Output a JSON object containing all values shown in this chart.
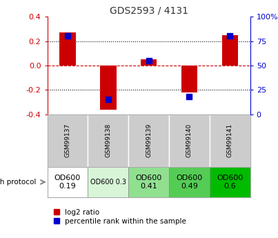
{
  "title": "GDS2593 / 4131",
  "samples": [
    "GSM99137",
    "GSM99138",
    "GSM99139",
    "GSM99140",
    "GSM99141"
  ],
  "log2_ratio": [
    0.27,
    -0.36,
    0.05,
    -0.22,
    0.25
  ],
  "percentile_rank": [
    80,
    15,
    55,
    18,
    80
  ],
  "ylim_left": [
    -0.4,
    0.4
  ],
  "ylim_right": [
    0,
    100
  ],
  "yticks_left": [
    -0.4,
    -0.2,
    0.0,
    0.2,
    0.4
  ],
  "yticks_right": [
    0,
    25,
    50,
    75,
    100
  ],
  "bar_color_red": "#cc0000",
  "dot_color_blue": "#0000cc",
  "growth_protocol_labels": [
    "OD600\n0.19",
    "OD600 0.3",
    "OD600\n0.41",
    "OD600\n0.49",
    "OD600\n0.6"
  ],
  "growth_protocol_colors": [
    "#ffffff",
    "#d8f5d8",
    "#90e090",
    "#55cc55",
    "#00bb00"
  ],
  "growth_protocol_fontsizes": [
    8,
    7,
    8,
    8,
    8
  ],
  "sample_bg_color": "#cccccc",
  "legend_red_label": "log2 ratio",
  "legend_blue_label": "percentile rank within the sample",
  "growth_protocol_text": "growth protocol",
  "title_color": "#333333",
  "zero_line_color": "#cc0000",
  "grid_color": "#000000",
  "left_axis_color": "#cc0000",
  "right_axis_color": "#0000cc",
  "bar_width": 0.4,
  "dot_size": 30
}
